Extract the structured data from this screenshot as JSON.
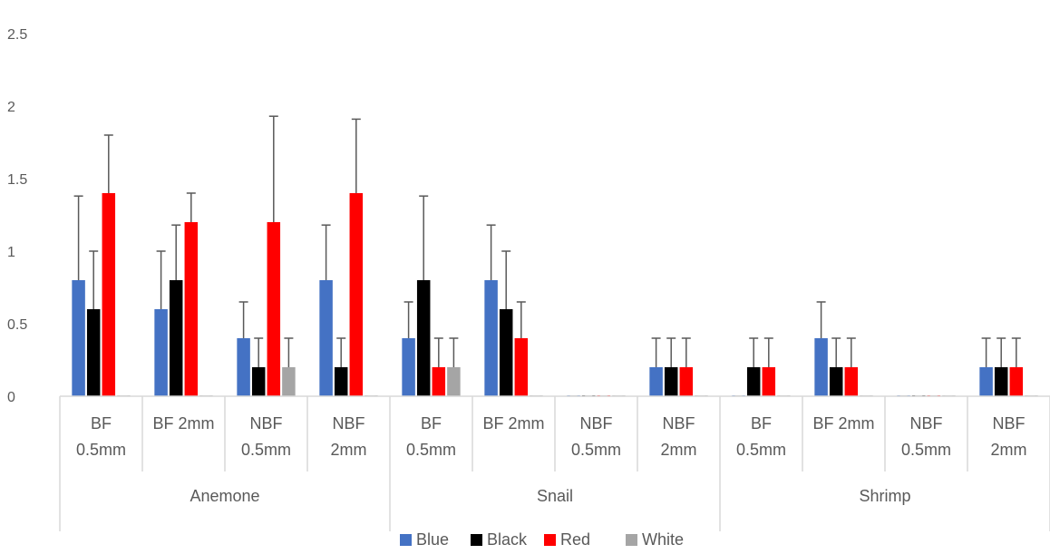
{
  "chart_data": {
    "type": "bar",
    "title": "",
    "xlabel": "",
    "ylabel": "",
    "ylim": [
      0,
      2.5
    ],
    "yticks": [
      "0",
      "0.5",
      "1",
      "1.5",
      "2",
      "2.5"
    ],
    "grid": false,
    "legend_position": "bottom",
    "groups": [
      {
        "name": "Anemone",
        "categories": [
          [
            "BF",
            "0.5mm"
          ],
          [
            "BF 2mm"
          ],
          [
            "NBF",
            "0.5mm"
          ],
          [
            "NBF",
            "2mm"
          ]
        ]
      },
      {
        "name": "Snail",
        "categories": [
          [
            "BF",
            "0.5mm"
          ],
          [
            "BF 2mm"
          ],
          [
            "NBF",
            "0.5mm"
          ],
          [
            "NBF",
            "2mm"
          ]
        ]
      },
      {
        "name": "Shrimp",
        "categories": [
          [
            "BF",
            "0.5mm"
          ],
          [
            "BF 2mm"
          ],
          [
            "NBF",
            "0.5mm"
          ],
          [
            "NBF",
            "2mm"
          ]
        ]
      }
    ],
    "series": [
      {
        "name": "Blue",
        "color": "#4472C4",
        "values": [
          0.8,
          0.6,
          0.4,
          0.8,
          0.4,
          0.8,
          0,
          0.2,
          0,
          0.4,
          0,
          0.2
        ],
        "errors": [
          0.58,
          0.4,
          0.25,
          0.38,
          0.25,
          0.38,
          0,
          0.2,
          0,
          0.25,
          0,
          0.2
        ]
      },
      {
        "name": "Black",
        "color": "#000000",
        "values": [
          0.6,
          0.8,
          0.2,
          0.2,
          0.8,
          0.6,
          0,
          0.2,
          0.2,
          0.2,
          0,
          0.2
        ],
        "errors": [
          0.4,
          0.38,
          0.2,
          0.2,
          0.58,
          0.4,
          0,
          0.2,
          0.2,
          0.2,
          0,
          0.2
        ]
      },
      {
        "name": "Red",
        "color": "#FF0000",
        "values": [
          1.4,
          1.2,
          1.2,
          1.4,
          0.2,
          0.4,
          0,
          0.2,
          0.2,
          0.2,
          0,
          0.2
        ],
        "errors": [
          0.4,
          0.2,
          0.73,
          0.51,
          0.2,
          0.25,
          0,
          0.2,
          0.2,
          0.2,
          0,
          0.2
        ]
      },
      {
        "name": "White",
        "color": "#A5A5A5",
        "values": [
          0,
          0,
          0.2,
          0,
          0.2,
          0,
          0,
          0,
          0,
          0,
          0,
          0
        ],
        "errors": [
          0,
          0,
          0.2,
          0,
          0.2,
          0,
          0,
          0,
          0,
          0,
          0,
          0
        ]
      }
    ]
  }
}
